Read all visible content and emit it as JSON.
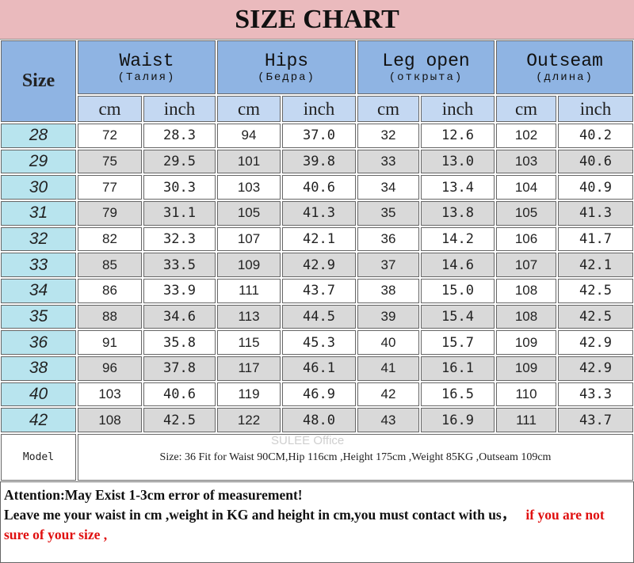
{
  "header": {
    "title": "SIZE CHART"
  },
  "table": {
    "size_label": "Size",
    "groups": [
      {
        "name": "Waist",
        "sub": "(Талия)"
      },
      {
        "name": "Hips",
        "sub": "(Бедра)"
      },
      {
        "name": "Leg open",
        "sub": "(открыта)"
      },
      {
        "name": "Outseam",
        "sub": "(длина)"
      }
    ],
    "units": [
      "cm",
      "inch",
      "cm",
      "inch",
      "cm",
      "inch",
      "cm",
      "inch"
    ],
    "rows": [
      [
        "28",
        "72",
        "28.3",
        "94",
        "37.0",
        "32",
        "12.6",
        "102",
        "40.2"
      ],
      [
        "29",
        "75",
        "29.5",
        "101",
        "39.8",
        "33",
        "13.0",
        "103",
        "40.6"
      ],
      [
        "30",
        "77",
        "30.3",
        "103",
        "40.6",
        "34",
        "13.4",
        "104",
        "40.9"
      ],
      [
        "31",
        "79",
        "31.1",
        "105",
        "41.3",
        "35",
        "13.8",
        "105",
        "41.3"
      ],
      [
        "32",
        "82",
        "32.3",
        "107",
        "42.1",
        "36",
        "14.2",
        "106",
        "41.7"
      ],
      [
        "33",
        "85",
        "33.5",
        "109",
        "42.9",
        "37",
        "14.6",
        "107",
        "42.1"
      ],
      [
        "34",
        "86",
        "33.9",
        "111",
        "43.7",
        "38",
        "15.0",
        "108",
        "42.5"
      ],
      [
        "35",
        "88",
        "34.6",
        "113",
        "44.5",
        "39",
        "15.4",
        "108",
        "42.5"
      ],
      [
        "36",
        "91",
        "35.8",
        "115",
        "45.3",
        "40",
        "15.7",
        "109",
        "42.9"
      ],
      [
        "38",
        "96",
        "37.8",
        "117",
        "46.1",
        "41",
        "16.1",
        "109",
        "42.9"
      ],
      [
        "40",
        "103",
        "40.6",
        "119",
        "46.9",
        "42",
        "16.5",
        "110",
        "43.3"
      ],
      [
        "42",
        "108",
        "42.5",
        "122",
        "48.0",
        "43",
        "16.9",
        "111",
        "43.7"
      ]
    ]
  },
  "model": {
    "label": "Model",
    "text": "Size: 36 Fit for Waist 90CM,Hip 116cm ,Height 175cm ,Weight 85KG ,Outseam 109cm",
    "watermark": "SULEE Office"
  },
  "notes": {
    "attention": "Attention:May Exist 1-3cm error of measurement!",
    "line": "Leave me your waist in cm ,weight in KG and height in cm,you must contact with us，",
    "highlight": "if you are not sure of your size ,"
  }
}
